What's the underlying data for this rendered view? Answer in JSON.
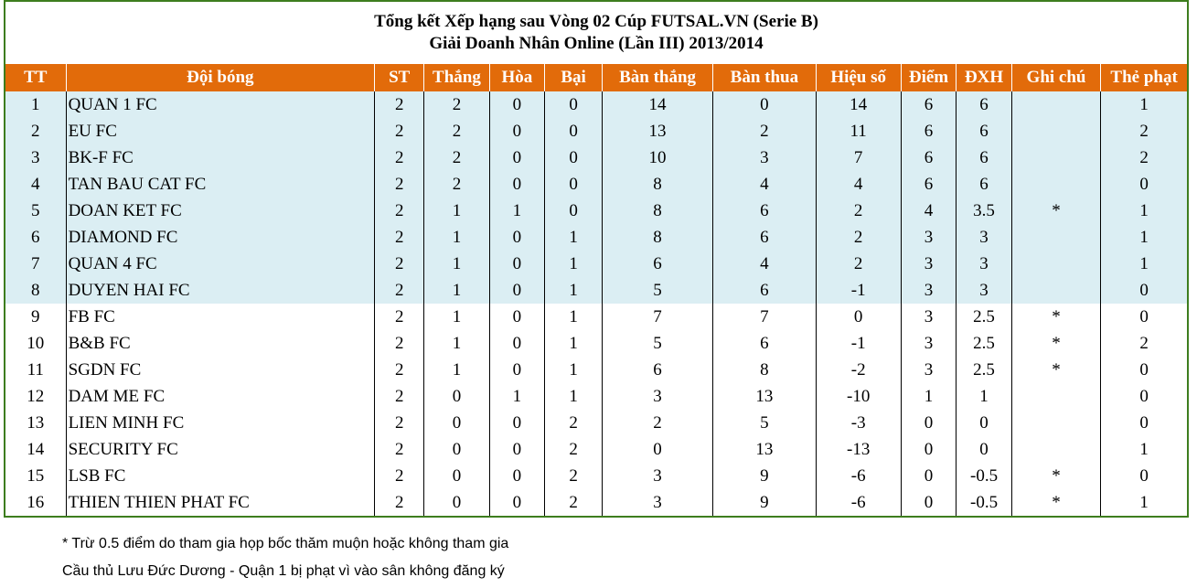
{
  "title": {
    "line1": "Tổng kết Xếp hạng sau Vòng 02 Cúp FUTSAL.VN (Serie B)",
    "line2": "Giải Doanh Nhân Online (Lần III) 2013/2014"
  },
  "headers": [
    "TT",
    "Đội bóng",
    "ST",
    "Thắng",
    "Hòa",
    "Bại",
    "Bàn thắng",
    "Bàn thua",
    "Hiệu số",
    "Điểm",
    "ĐXH",
    "Ghi chú",
    "Thẻ phạt"
  ],
  "rows": [
    [
      "1",
      "QUAN 1 FC",
      "2",
      "2",
      "0",
      "0",
      "14",
      "0",
      "14",
      "6",
      "6",
      "",
      "1"
    ],
    [
      "2",
      "EU FC",
      "2",
      "2",
      "0",
      "0",
      "13",
      "2",
      "11",
      "6",
      "6",
      "",
      "2"
    ],
    [
      "3",
      "BK-F FC",
      "2",
      "2",
      "0",
      "0",
      "10",
      "3",
      "7",
      "6",
      "6",
      "",
      "2"
    ],
    [
      "4",
      "TAN BAU CAT FC",
      "2",
      "2",
      "0",
      "0",
      "8",
      "4",
      "4",
      "6",
      "6",
      "",
      "0"
    ],
    [
      "5",
      "DOAN KET FC",
      "2",
      "1",
      "1",
      "0",
      "8",
      "6",
      "2",
      "4",
      "3.5",
      "*",
      "1"
    ],
    [
      "6",
      "DIAMOND FC",
      "2",
      "1",
      "0",
      "1",
      "8",
      "6",
      "2",
      "3",
      "3",
      "",
      "1"
    ],
    [
      "7",
      "QUAN 4 FC",
      "2",
      "1",
      "0",
      "1",
      "6",
      "4",
      "2",
      "3",
      "3",
      "",
      "1"
    ],
    [
      "8",
      "DUYEN HAI FC",
      "2",
      "1",
      "0",
      "1",
      "5",
      "6",
      "-1",
      "3",
      "3",
      "",
      "0"
    ],
    [
      "9",
      "FB FC",
      "2",
      "1",
      "0",
      "1",
      "7",
      "7",
      "0",
      "3",
      "2.5",
      "*",
      "0"
    ],
    [
      "10",
      "B&B FC",
      "2",
      "1",
      "0",
      "1",
      "5",
      "6",
      "-1",
      "3",
      "2.5",
      "*",
      "2"
    ],
    [
      "11",
      "SGDN FC",
      "2",
      "1",
      "0",
      "1",
      "6",
      "8",
      "-2",
      "3",
      "2.5",
      "*",
      "0"
    ],
    [
      "12",
      "DAM ME FC",
      "2",
      "0",
      "1",
      "1",
      "3",
      "13",
      "-10",
      "1",
      "1",
      "",
      "0"
    ],
    [
      "13",
      "LIEN MINH FC",
      "2",
      "0",
      "0",
      "2",
      "2",
      "5",
      "-3",
      "0",
      "0",
      "",
      "0"
    ],
    [
      "14",
      "SECURITY FC",
      "2",
      "0",
      "0",
      "2",
      "0",
      "13",
      "-13",
      "0",
      "0",
      "",
      "1"
    ],
    [
      "15",
      "LSB FC",
      "2",
      "0",
      "0",
      "2",
      "3",
      "9",
      "-6",
      "0",
      "-0.5",
      "*",
      "0"
    ],
    [
      "16",
      "THIEN THIEN PHAT FC",
      "2",
      "0",
      "0",
      "2",
      "3",
      "9",
      "-6",
      "0",
      "-0.5",
      "*",
      "1"
    ]
  ],
  "notes": {
    "note1": "* Trừ 0.5 điểm do tham gia họp bốc thăm muộn hoặc không tham gia",
    "note2": "Cầu thủ Lưu Đức Dương - Quận 1 bị phạt vì vào sân không đăng ký"
  },
  "colors": {
    "header_bg": "#e26b0a",
    "top8_bg": "#dbeef3",
    "border_green": "#3d7d1e"
  }
}
